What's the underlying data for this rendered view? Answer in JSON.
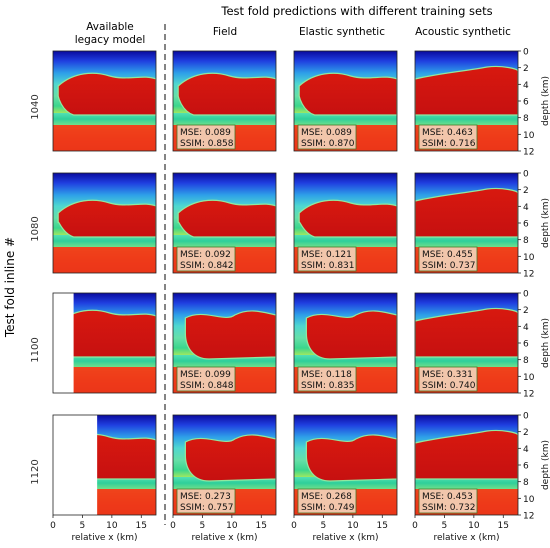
{
  "figure": {
    "main_title": "Test fold predictions with different training sets",
    "legacy_header": [
      "Available",
      "legacy model"
    ],
    "column_titles": [
      "Field",
      "Elastic synthetic",
      "Acoustic synthetic"
    ],
    "row_axis_label": "Test fold inline #",
    "row_labels": [
      "1040",
      "1080",
      "1100",
      "1120"
    ],
    "x_axis_label": "relative x (km)",
    "x_ticks": [
      "0",
      "5",
      "10",
      "15"
    ],
    "y_axis_label": "depth (km)",
    "y_ticks": [
      "0",
      "2",
      "4",
      "6",
      "8",
      "10",
      "12"
    ],
    "metrics": [
      [
        {
          "mse": "MSE: 0.089",
          "ssim": "SSIM: 0.858"
        },
        {
          "mse": "MSE: 0.089",
          "ssim": "SSIM: 0.870"
        },
        {
          "mse": "MSE: 0.463",
          "ssim": "SSIM: 0.716"
        }
      ],
      [
        {
          "mse": "MSE: 0.092",
          "ssim": "SSIM: 0.842"
        },
        {
          "mse": "MSE: 0.121",
          "ssim": "SSIM: 0.831"
        },
        {
          "mse": "MSE: 0.455",
          "ssim": "SSIM: 0.737"
        }
      ],
      [
        {
          "mse": "MSE: 0.099",
          "ssim": "SSIM: 0.848"
        },
        {
          "mse": "MSE: 0.118",
          "ssim": "SSIM: 0.835"
        },
        {
          "mse": "MSE: 0.331",
          "ssim": "SSIM: 0.740"
        }
      ],
      [
        {
          "mse": "MSE: 0.273",
          "ssim": "SSIM: 0.757"
        },
        {
          "mse": "MSE: 0.268",
          "ssim": "SSIM: 0.749"
        },
        {
          "mse": "MSE: 0.453",
          "ssim": "SSIM: 0.732"
        }
      ]
    ],
    "legacy_blank_extent_km": [
      0,
      0,
      3.5,
      7.5
    ],
    "colors": {
      "salt": "#d01414",
      "shallow": "#1818c8",
      "sediment": "#2fd6a6",
      "deep": "#ee3a1a",
      "metric_box": "#f3d2b8",
      "metric_border": "#3a7a2a"
    }
  }
}
